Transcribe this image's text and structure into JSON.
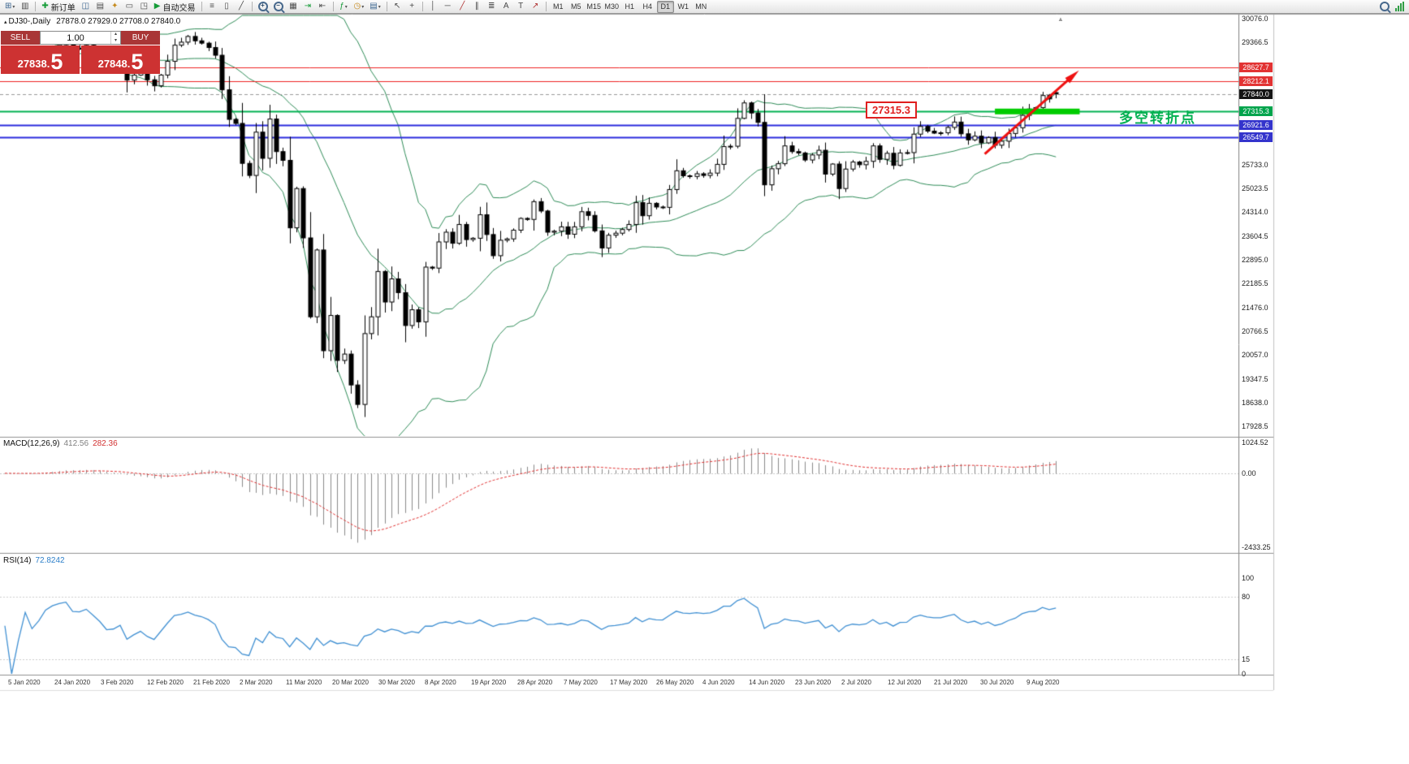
{
  "toolbar": {
    "new_order_label": "新订单",
    "auto_trading_label": "自动交易",
    "timeframes": [
      "M1",
      "M5",
      "M15",
      "M30",
      "H1",
      "H4",
      "D1",
      "W1",
      "MN"
    ],
    "active_timeframe": "D1"
  },
  "icons": {
    "new_chart": "⊞",
    "profiles": "▥",
    "plus": "✚",
    "market_watch": "◫",
    "data_window": "▤",
    "navigator": "✦",
    "terminal": "▭",
    "strategy_tester": "◳",
    "play": "▶",
    "bar_chart": "≡",
    "candle_chart": "▯",
    "line_chart": "╱",
    "tile_windows": "▦",
    "auto_scroll": "⇥",
    "chart_shift": "⇤",
    "indicators": "ƒ",
    "periods": "◷",
    "templates": "▤",
    "cursor": "↖",
    "crosshair": "+",
    "vertical_line": "│",
    "horizontal_line": "─",
    "trendline": "╱",
    "channel": "∥",
    "fibonacci": "≣",
    "text": "A",
    "label": "T",
    "arrows": "↗",
    "zoom_plus": "+",
    "zoom_minus": "−",
    "spin_up": "▴",
    "spin_down": "▾",
    "symbol_marker": "▴",
    "chart_shift_marker": "▲"
  },
  "chart": {
    "symbol_title": "DJ30-,Daily",
    "ohlc_text": "27878.0 27929.0 27708.0 27840.0"
  },
  "one_click": {
    "sell_label": "SELL",
    "buy_label": "BUY",
    "volume": "1.00",
    "sell_price_main": "27838.",
    "sell_price_big": "5",
    "buy_price_main": "27848.",
    "buy_price_big": "5"
  },
  "annotations": {
    "price_callout": "27315.3",
    "turning_point_text": "多空转折点"
  },
  "price_axis": [
    "30076.0",
    "29366.5",
    "25733.0",
    "25023.5",
    "24314.0",
    "23604.5",
    "22895.0",
    "22185.5",
    "21476.0",
    "20766.5",
    "20057.0",
    "19347.5",
    "18638.0",
    "17928.5"
  ],
  "date_axis": [
    "5 Jan 2020",
    "24 Jan 2020",
    "3 Feb 2020",
    "12 Feb 2020",
    "21 Feb 2020",
    "2 Mar 2020",
    "11 Mar 2020",
    "20 Mar 2020",
    "30 Mar 2020",
    "8 Apr 2020",
    "19 Apr 2020",
    "28 Apr 2020",
    "7 May 2020",
    "17 May 2020",
    "26 May 2020",
    "4 Jun 2020",
    "14 Jun 2020",
    "23 Jun 2020",
    "2 Jul 2020",
    "12 Jul 2020",
    "21 Jul 2020",
    "30 Jul 2020",
    "9 Aug 2020"
  ],
  "macd_panel": {
    "name": "MACD(12,26,9)",
    "main_value": "412.56",
    "signal_value": "282.36",
    "axis_labels": [
      "1024.52",
      "0.00",
      "-2433.25"
    ],
    "axis_values": [
      1024.52,
      0,
      -2433.25
    ]
  },
  "rsi_panel": {
    "name": "RSI(14)",
    "value": "72.8242",
    "axis_labels": [
      "100",
      "80",
      "15",
      "0"
    ],
    "axis_values": [
      100,
      80,
      15,
      0
    ],
    "levels": [
      80,
      15
    ]
  },
  "chart_data": {
    "type": "candlestick",
    "symbol": "DJ30-",
    "timeframe": "Daily",
    "current_candle": {
      "open": 27878.0,
      "high": 27929.0,
      "low": 27708.0,
      "close": 27840.0
    },
    "bid": 27838.5,
    "ask": 27848.5,
    "y_axis_range": [
      17650,
      30200
    ],
    "closes": [
      28850,
      28720,
      28790,
      28950,
      28820,
      28910,
      29100,
      29220,
      29300,
      29350,
      29200,
      29190,
      29290,
      29160,
      28990,
      28720,
      28740,
      28860,
      28250,
      28400,
      28530,
      28260,
      28080,
      28400,
      28810,
      29290,
      29380,
      29550,
      29420,
      29350,
      29220,
      28990,
      27960,
      27080,
      26960,
      25770,
      25410,
      26700,
      25920,
      27090,
      26120,
      25860,
      23850,
      25020,
      23550,
      21200,
      23190,
      20190,
      21240,
      19900,
      20090,
      19170,
      18590,
      20700,
      21200,
      22550,
      21640,
      22330,
      21920,
      20940,
      21410,
      21050,
      22680,
      22650,
      23430,
      23720,
      23390,
      23950,
      23500,
      23540,
      24240,
      23650,
      23020,
      23480,
      23520,
      23780,
      24130,
      24100,
      24630,
      24350,
      23720,
      23750,
      23880,
      23660,
      23880,
      24330,
      24220,
      23760,
      23250,
      23630,
      23690,
      23800,
      23950,
      24600,
      24210,
      24580,
      24470,
      24460,
      24990,
      25550,
      25400,
      25380,
      25460,
      25410,
      25480,
      25740,
      26270,
      26280,
      27110,
      27570,
      27270,
      26990,
      25130,
      25610,
      25760,
      26290,
      26120,
      26080,
      25870,
      26020,
      26160,
      25450,
      25750,
      25020,
      25600,
      25810,
      25730,
      25830,
      26290,
      25890,
      26070,
      25710,
      26080,
      26090,
      26640,
      26870,
      26730,
      26670,
      26680,
      26840,
      27000,
      26650,
      26470,
      26580,
      26380,
      26540,
      26310,
      26430,
      26660,
      26830,
      27200,
      27390,
      27430,
      27790,
      27690,
      27840
    ],
    "indicators": {
      "bollinger": {
        "period": 20,
        "deviations": 2
      },
      "macd": {
        "fast_ema": 12,
        "slow_ema": 26,
        "signal": 9,
        "main": 412.56,
        "signal_value": 282.36,
        "max": 1024.52,
        "min": -2433.25
      },
      "rsi": {
        "period": 14,
        "value": 72.8242
      }
    },
    "levels": [
      {
        "price": 28627.7,
        "label": "28627.7",
        "color": "#ee2222",
        "chip": "#e23333",
        "width": 1
      },
      {
        "price": 28212.1,
        "label": "28212.1",
        "color": "#ee2222",
        "chip": "#e23333",
        "width": 1
      },
      {
        "price": 27840.0,
        "label": "27840.0",
        "color": "#999999",
        "chip": "#151515",
        "width": 1,
        "dash": true
      },
      {
        "price": 27315.3,
        "label": "27315.3",
        "color": "#00b050",
        "chip": "#00a44c",
        "width": 2
      },
      {
        "price": 26921.6,
        "label": "26921.6",
        "color": "#2b2bdd",
        "chip": "#3434cc",
        "width": 2
      },
      {
        "price": 26549.7,
        "label": "26549.7",
        "color": "#2b2bdd",
        "chip": "#3434cc",
        "width": 2
      }
    ],
    "drawings": {
      "support_bar": {
        "price": 27315.3,
        "start_index": 146,
        "end_index": 158.5,
        "color": "#00cc00",
        "thickness": 7
      },
      "trend_arrow": {
        "from_index": 144.5,
        "from_price": 26050,
        "to_index": 157.5,
        "to_price": 28380,
        "color": "#ee1111"
      }
    }
  }
}
